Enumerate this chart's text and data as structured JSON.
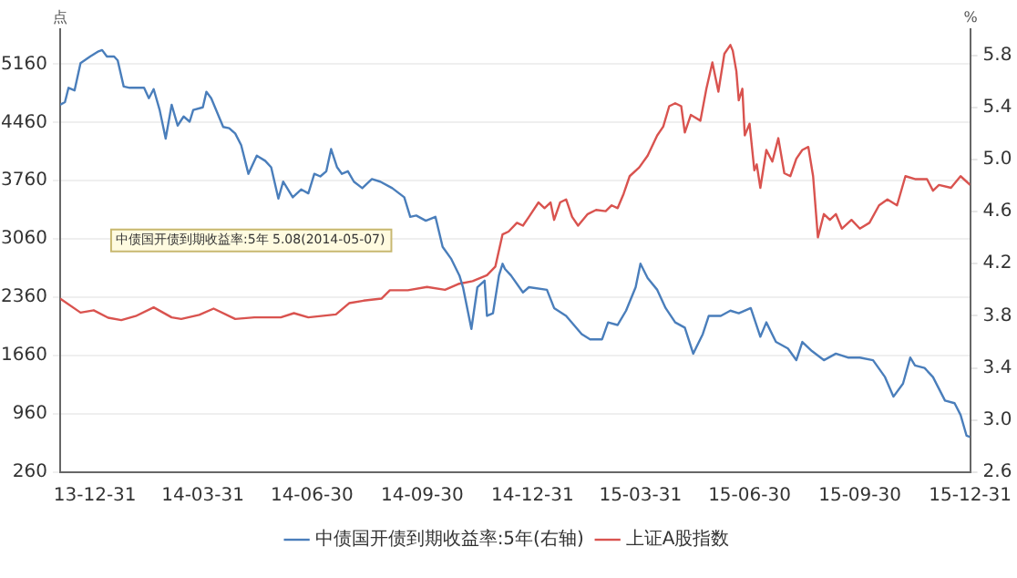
{
  "chart_data": {
    "type": "line",
    "ylabel": "点",
    "y2label": "%",
    "annotations": [
      "中债国开债到期收益率:5年 5.08(2014-05-07)"
    ],
    "xlim": [
      "2013-12-02",
      "2015-12-31"
    ],
    "xticks": [
      {
        "value": "2013-12-31",
        "label": "13-12-31"
      },
      {
        "value": "2014-03-31",
        "label": "14-03-31"
      },
      {
        "value": "2014-06-30",
        "label": "14-06-30"
      },
      {
        "value": "2014-09-30",
        "label": "14-09-30"
      },
      {
        "value": "2014-12-31",
        "label": "14-12-31"
      },
      {
        "value": "2015-03-31",
        "label": "15-03-31"
      },
      {
        "value": "2015-06-30",
        "label": "15-06-30"
      },
      {
        "value": "2015-09-30",
        "label": "15-09-30"
      },
      {
        "value": "2015-12-31",
        "label": "15-12-31"
      }
    ],
    "ylim": [
      260,
      5580
    ],
    "yticks": [
      260,
      960,
      1660,
      2360,
      3060,
      3760,
      4460,
      5160
    ],
    "y2lim": [
      2.6,
      6.0
    ],
    "y2ticks": [
      2.6,
      {
        "value": 3.0,
        "label": "3.0"
      },
      3.4,
      3.8,
      4.2,
      4.6,
      {
        "value": 5.0,
        "label": "5.0"
      },
      5.4,
      5.8
    ],
    "grid": "y",
    "legend": "bottom",
    "series": [
      {
        "name": "中债国开债到期收益率:5年(右轴)",
        "color": "#4a7ebb",
        "axis": "y2",
        "x": [
          "2013-12-02",
          "2013-12-06",
          "2013-12-09",
          "2013-12-14",
          "2013-12-19",
          "2013-12-27",
          "2014-01-03",
          "2014-01-06",
          "2014-01-10",
          "2014-01-16",
          "2014-01-19",
          "2014-01-24",
          "2014-01-29",
          "2014-02-10",
          "2014-02-14",
          "2014-02-18",
          "2014-02-23",
          "2014-02-28",
          "2014-03-05",
          "2014-03-10",
          "2014-03-15",
          "2014-03-20",
          "2014-03-23",
          "2014-03-31",
          "2014-04-03",
          "2014-04-07",
          "2014-04-12",
          "2014-04-17",
          "2014-04-22",
          "2014-04-27",
          "2014-05-02",
          "2014-05-08",
          "2014-05-15",
          "2014-05-22",
          "2014-05-27",
          "2014-06-02",
          "2014-06-06",
          "2014-06-14",
          "2014-06-21",
          "2014-06-27",
          "2014-07-02",
          "2014-07-07",
          "2014-07-12",
          "2014-07-16",
          "2014-07-21",
          "2014-07-25",
          "2014-07-30",
          "2014-08-04",
          "2014-08-11",
          "2014-08-19",
          "2014-08-26",
          "2014-09-05",
          "2014-09-15",
          "2014-09-20",
          "2014-09-25",
          "2014-10-03",
          "2014-10-11",
          "2014-10-17",
          "2014-10-24",
          "2014-10-31",
          "2014-11-03",
          "2014-11-10",
          "2014-11-15",
          "2014-11-21",
          "2014-11-23",
          "2014-11-28",
          "2014-12-03",
          "2014-12-06",
          "2014-12-08",
          "2014-12-13",
          "2014-12-23",
          "2014-12-28",
          "2015-01-12",
          "2015-01-18",
          "2015-01-28",
          "2015-02-10",
          "2015-02-17",
          "2015-02-27",
          "2015-03-04",
          "2015-03-12",
          "2015-03-19",
          "2015-03-27",
          "2015-03-31",
          "2015-04-06",
          "2015-04-14",
          "2015-04-21",
          "2015-04-29",
          "2015-05-07",
          "2015-05-14",
          "2015-05-22",
          "2015-05-27",
          "2015-06-06",
          "2015-06-14",
          "2015-06-21",
          "2015-07-01",
          "2015-07-09",
          "2015-07-14",
          "2015-07-22",
          "2015-08-01",
          "2015-08-08",
          "2015-08-13",
          "2015-08-21",
          "2015-08-31",
          "2015-09-10",
          "2015-09-20",
          "2015-09-30",
          "2015-10-11",
          "2015-10-21",
          "2015-10-28",
          "2015-11-05",
          "2015-11-11",
          "2015-11-15",
          "2015-11-23",
          "2015-11-30",
          "2015-12-10",
          "2015-12-18",
          "2015-12-23",
          "2015-12-28",
          "2015-12-31"
        ],
        "values": [
          5.42,
          5.44,
          5.55,
          5.53,
          5.74,
          5.79,
          5.83,
          5.84,
          5.79,
          5.79,
          5.76,
          5.56,
          5.55,
          5.55,
          5.47,
          5.54,
          5.38,
          5.16,
          5.42,
          5.26,
          5.33,
          5.29,
          5.38,
          5.4,
          5.52,
          5.47,
          5.36,
          5.25,
          5.24,
          5.2,
          5.11,
          4.89,
          5.03,
          4.99,
          4.94,
          4.7,
          4.83,
          4.71,
          4.77,
          4.74,
          4.89,
          4.87,
          4.91,
          5.08,
          4.94,
          4.89,
          4.91,
          4.83,
          4.78,
          4.85,
          4.83,
          4.78,
          4.71,
          4.56,
          4.57,
          4.53,
          4.56,
          4.33,
          4.24,
          4.11,
          4.02,
          3.7,
          4.02,
          4.07,
          3.8,
          3.82,
          4.11,
          4.2,
          4.16,
          4.11,
          3.98,
          4.02,
          4.0,
          3.86,
          3.8,
          3.66,
          3.62,
          3.62,
          3.75,
          3.73,
          3.84,
          4.02,
          4.2,
          4.09,
          4.0,
          3.86,
          3.75,
          3.71,
          3.51,
          3.66,
          3.8,
          3.8,
          3.84,
          3.82,
          3.86,
          3.64,
          3.75,
          3.6,
          3.55,
          3.46,
          3.6,
          3.53,
          3.46,
          3.51,
          3.48,
          3.48,
          3.46,
          3.33,
          3.18,
          3.28,
          3.48,
          3.42,
          3.4,
          3.33,
          3.15,
          3.13,
          3.04,
          2.88,
          2.87
        ]
      },
      {
        "name": "上证A股指数",
        "color": "#d9534f",
        "x": [
          "2013-12-02",
          "2013-12-19",
          "2013-12-30",
          "2014-01-11",
          "2014-01-22",
          "2014-02-03",
          "2014-02-18",
          "2014-03-05",
          "2014-03-13",
          "2014-03-28",
          "2014-04-09",
          "2014-04-27",
          "2014-05-13",
          "2014-06-04",
          "2014-06-15",
          "2014-06-27",
          "2014-07-20",
          "2014-07-31",
          "2014-08-12",
          "2014-08-27",
          "2014-09-03",
          "2014-09-18",
          "2014-10-04",
          "2014-10-19",
          "2014-10-30",
          "2014-11-11",
          "2014-11-23",
          "2014-11-30",
          "2014-12-06",
          "2014-12-11",
          "2014-12-18",
          "2014-12-23",
          "2014-12-28",
          "2015-01-05",
          "2015-01-10",
          "2015-01-15",
          "2015-01-18",
          "2015-01-23",
          "2015-01-28",
          "2015-02-02",
          "2015-02-07",
          "2015-02-15",
          "2015-02-22",
          "2015-03-02",
          "2015-03-07",
          "2015-03-12",
          "2015-03-17",
          "2015-03-22",
          "2015-03-30",
          "2015-04-06",
          "2015-04-14",
          "2015-04-19",
          "2015-04-24",
          "2015-04-29",
          "2015-05-04",
          "2015-05-07",
          "2015-05-12",
          "2015-05-20",
          "2015-05-25",
          "2015-05-30",
          "2015-06-04",
          "2015-06-09",
          "2015-06-14",
          "2015-06-16",
          "2015-06-19",
          "2015-06-21",
          "2015-06-24",
          "2015-06-26",
          "2015-06-30",
          "2015-07-04",
          "2015-07-06",
          "2015-07-09",
          "2015-07-14",
          "2015-07-19",
          "2015-07-24",
          "2015-07-29",
          "2015-08-03",
          "2015-08-08",
          "2015-08-13",
          "2015-08-18",
          "2015-08-22",
          "2015-08-26",
          "2015-08-31",
          "2015-09-05",
          "2015-09-10",
          "2015-09-15",
          "2015-09-23",
          "2015-09-30",
          "2015-10-08",
          "2015-10-16",
          "2015-10-23",
          "2015-10-31",
          "2015-11-07",
          "2015-11-15",
          "2015-11-25",
          "2015-11-30",
          "2015-12-05",
          "2015-12-15",
          "2015-12-23",
          "2015-12-31"
        ],
        "values": [
          2345,
          2177,
          2205,
          2115,
          2087,
          2135,
          2240,
          2120,
          2100,
          2150,
          2225,
          2100,
          2120,
          2120,
          2170,
          2120,
          2155,
          2290,
          2320,
          2345,
          2445,
          2445,
          2485,
          2450,
          2520,
          2555,
          2625,
          2730,
          3116,
          3150,
          3255,
          3221,
          3326,
          3500,
          3431,
          3500,
          3290,
          3500,
          3536,
          3326,
          3221,
          3360,
          3410,
          3395,
          3465,
          3431,
          3605,
          3815,
          3920,
          4061,
          4305,
          4410,
          4655,
          4691,
          4655,
          4340,
          4550,
          4481,
          4865,
          5180,
          4830,
          5285,
          5390,
          5321,
          5075,
          4725,
          4865,
          4305,
          4445,
          3885,
          3956,
          3675,
          4130,
          3990,
          4271,
          3851,
          3815,
          4025,
          4130,
          4166,
          3815,
          3080,
          3360,
          3290,
          3360,
          3185,
          3290,
          3185,
          3255,
          3465,
          3536,
          3465,
          3815,
          3780,
          3780,
          3641,
          3710,
          3675,
          3815,
          3710
        ]
      }
    ]
  }
}
